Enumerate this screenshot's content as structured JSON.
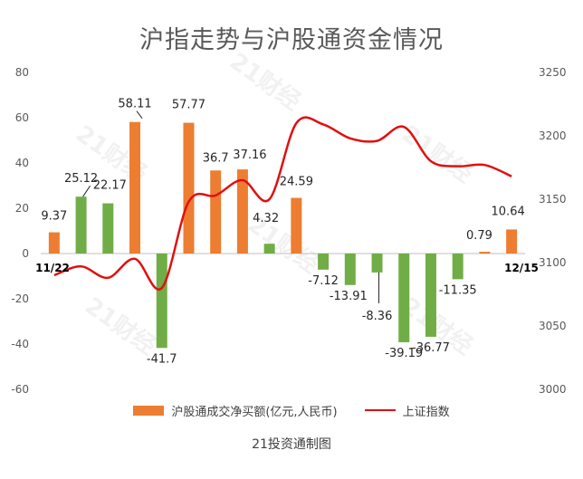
{
  "title": "沪指走势与沪股通资金情况",
  "source": "21投资通制图",
  "watermark": "21财经",
  "chart_data": {
    "type": "bar",
    "title": "沪指走势与沪股通资金情况",
    "x_start_label": "11/22",
    "x_end_label": "12/15",
    "y_left": {
      "min": -60,
      "max": 80,
      "step": 20,
      "ticks": [
        "80",
        "60",
        "40",
        "20",
        "0",
        "-20",
        "-40",
        "-60"
      ]
    },
    "y_right": {
      "min": 3000,
      "max": 3250,
      "step": 50,
      "ticks": [
        "3250",
        "3200",
        "3150",
        "3100",
        "3050",
        "3000"
      ]
    },
    "bars": {
      "name": "沪股通成交净买额(亿元,人民币)",
      "values": [
        9.37,
        25.12,
        22.17,
        58.11,
        -41.7,
        57.77,
        36.7,
        37.16,
        4.32,
        24.59,
        -7.12,
        -13.91,
        -8.36,
        -39.19,
        -36.77,
        -11.35,
        0.79,
        10.64
      ],
      "labels": [
        "9.37",
        "25.12",
        "22.17",
        "58.11",
        "-41.7",
        "57.77",
        "36.7",
        "37.16",
        "4.32",
        "24.59",
        "-7.12",
        "-13.91",
        "-8.36",
        "-39.19",
        "-36.77",
        "-11.35",
        "0.79",
        "10.64"
      ],
      "colors": [
        "#ed7d31",
        "#70ad47",
        "#70ad47",
        "#ed7d31",
        "#70ad47",
        "#ed7d31",
        "#ed7d31",
        "#ed7d31",
        "#70ad47",
        "#ed7d31",
        "#70ad47",
        "#70ad47",
        "#70ad47",
        "#70ad47",
        "#70ad47",
        "#70ad47",
        "#ed7d31",
        "#ed7d31"
      ]
    },
    "line": {
      "name": "上证指数",
      "color": "#e01010",
      "values": [
        3090,
        3097,
        3088,
        3103,
        3080,
        3148,
        3153,
        3165,
        3150,
        3210,
        3209,
        3198,
        3196,
        3207,
        3180,
        3176,
        3177,
        3168
      ]
    },
    "legend_position": "bottom",
    "grid": false
  }
}
